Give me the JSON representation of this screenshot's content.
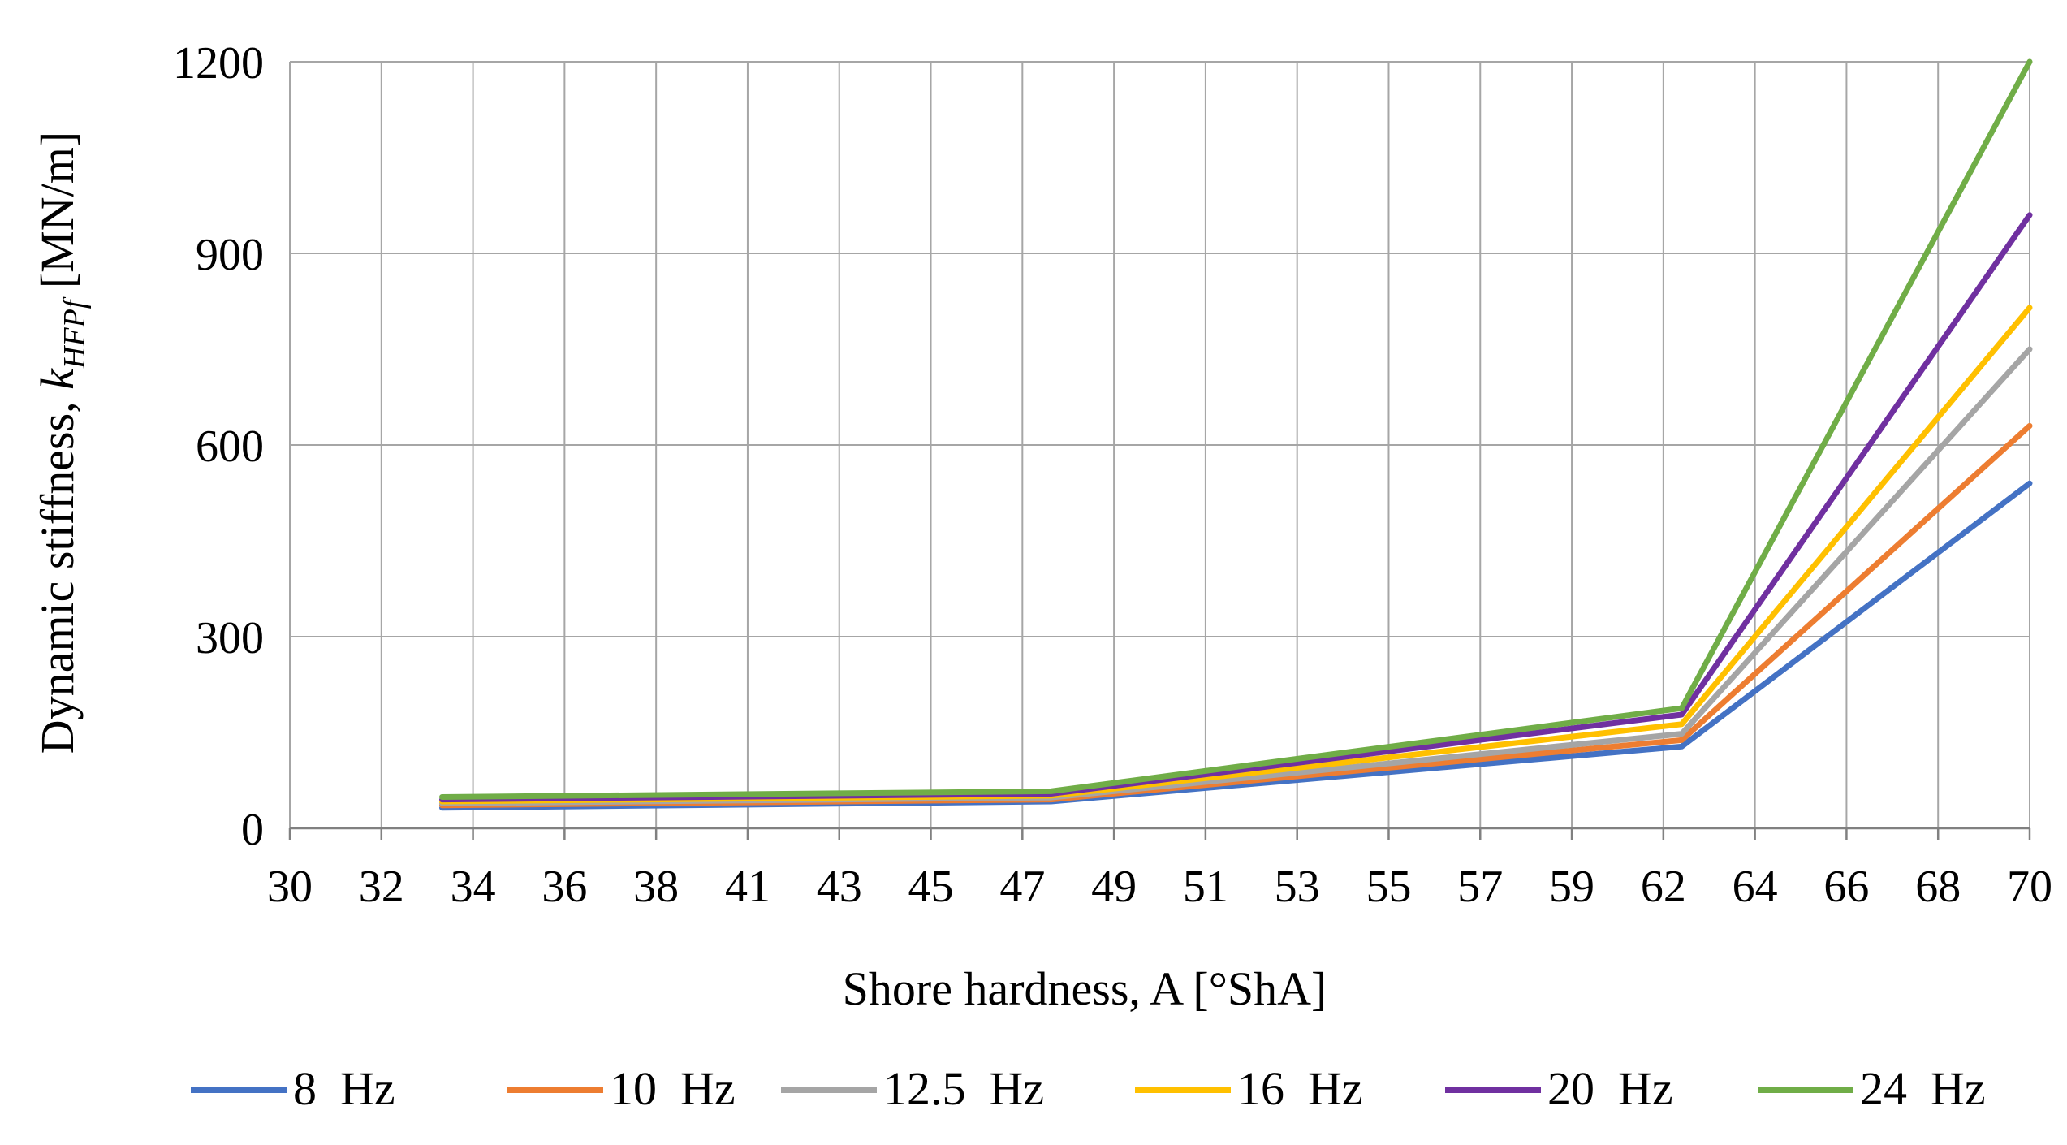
{
  "chart_data": {
    "type": "line",
    "title": "",
    "xlabel": "Shore hardness, A [°ShA]",
    "ylabel_main": "Dynamic stiffness, ",
    "ylabel_symbol": "k",
    "ylabel_subscript": "HFPf",
    "ylabel_unit": " [MN/m]",
    "x_ticks": [
      "30",
      "32",
      "34",
      "36",
      "38",
      "41",
      "43",
      "45",
      "47",
      "49",
      "51",
      "53",
      "55",
      "57",
      "59",
      "62",
      "64",
      "66",
      "68",
      "70"
    ],
    "xlim": [
      30,
      70
    ],
    "y_ticks": [
      0,
      300,
      600,
      900,
      1200
    ],
    "ylim": [
      0,
      1200
    ],
    "grid": true,
    "legend_position": "bottom",
    "x": [
      33.5,
      47.5,
      62,
      70
    ],
    "series": [
      {
        "name": "8  Hz",
        "color": "#4472c4",
        "values": [
          32,
          42,
          128,
          540
        ]
      },
      {
        "name": "10  Hz",
        "color": "#ed7d31",
        "values": [
          36,
          45,
          138,
          630
        ]
      },
      {
        "name": "12.5  Hz",
        "color": "#a5a5a5",
        "values": [
          39,
          48,
          148,
          750
        ]
      },
      {
        "name": "16  Hz",
        "color": "#ffc000",
        "values": [
          42,
          51,
          163,
          815
        ]
      },
      {
        "name": "20  Hz",
        "color": "#7030a0",
        "values": [
          45,
          54,
          178,
          960
        ]
      },
      {
        "name": "24  Hz",
        "color": "#70ad47",
        "values": [
          49,
          58,
          188,
          1200
        ]
      }
    ]
  }
}
